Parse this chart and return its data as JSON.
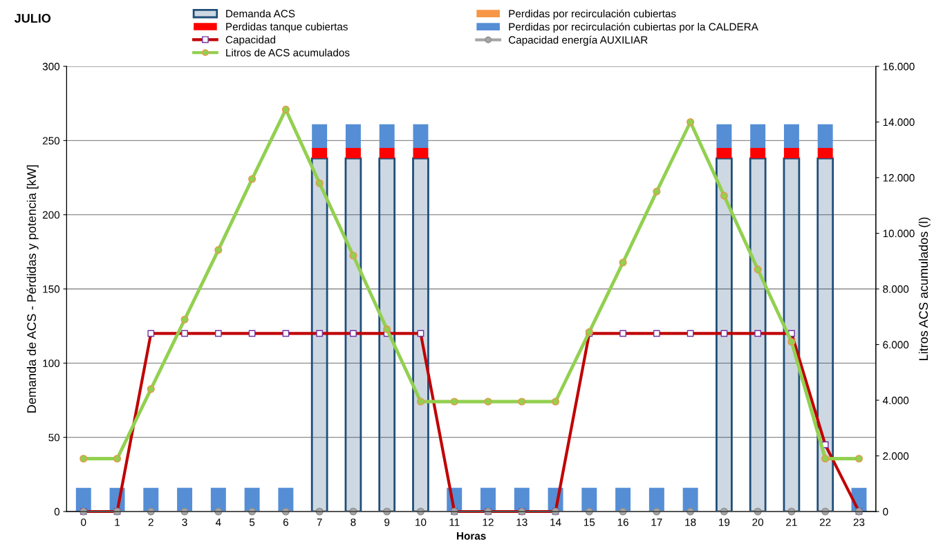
{
  "chart_data": {
    "type": "bar",
    "stacked": true,
    "title": "JULIO",
    "xlabel": "Horas",
    "ylabel": "Demanda de ACS - Pérdidas y potencia [kW]",
    "y2label": "Litros ACS acumulados (l)",
    "categories": [
      "0",
      "1",
      "2",
      "3",
      "4",
      "5",
      "6",
      "7",
      "8",
      "9",
      "10",
      "11",
      "12",
      "13",
      "14",
      "15",
      "16",
      "17",
      "18",
      "19",
      "20",
      "21",
      "22",
      "23"
    ],
    "series": [
      {
        "name": "Demanda ACS",
        "color": "#1f4e79",
        "values": [
          0,
          0,
          0,
          0,
          0,
          0,
          0,
          238,
          238,
          238,
          238,
          0,
          0,
          0,
          0,
          0,
          0,
          0,
          0,
          238,
          238,
          238,
          238,
          0
        ]
      },
      {
        "name": "Perdidas tanque cubiertas",
        "color": "#ff0000",
        "values": [
          0,
          0,
          0,
          0,
          0,
          0,
          0,
          7,
          7,
          7,
          7,
          0,
          0,
          0,
          0,
          0,
          0,
          0,
          0,
          7,
          7,
          7,
          7,
          0
        ]
      },
      {
        "name": "Capacidad",
        "type": "line",
        "color": "#c00000",
        "marker": "square",
        "values": [
          0,
          0,
          120,
          120,
          120,
          120,
          120,
          120,
          120,
          120,
          120,
          0,
          0,
          0,
          0,
          120,
          120,
          120,
          120,
          120,
          120,
          120,
          45,
          0
        ]
      },
      {
        "name": "Litros de ACS acumulados",
        "type": "line",
        "axis": "y2",
        "color": "#92d050",
        "marker": "circle",
        "values": [
          1900,
          1900,
          4400,
          6900,
          9400,
          11950,
          14450,
          11800,
          9200,
          6550,
          3950,
          3950,
          3950,
          3950,
          3950,
          6450,
          8950,
          11500,
          14000,
          11350,
          8700,
          6100,
          1900,
          1900
        ]
      },
      {
        "name": "Perdidas por recirculación cubiertas",
        "color": "#f79646",
        "values": [
          0,
          0,
          0,
          0,
          0,
          0,
          0,
          0,
          0,
          0,
          0,
          0,
          0,
          0,
          0,
          0,
          0,
          0,
          0,
          0,
          0,
          0,
          0,
          0
        ]
      },
      {
        "name": "Perdidas por recirculación cubiertas por la CALDERA",
        "color": "#558ed5",
        "values": [
          16,
          16,
          16,
          16,
          16,
          16,
          16,
          16,
          16,
          16,
          16,
          16,
          16,
          16,
          16,
          16,
          16,
          16,
          16,
          16,
          16,
          16,
          16,
          16
        ]
      },
      {
        "name": "Capacidad energía AUXILIAR",
        "type": "line",
        "color": "#a6a6a6",
        "marker": "circle",
        "values": [
          0,
          0,
          0,
          0,
          0,
          0,
          0,
          0,
          0,
          0,
          0,
          0,
          0,
          0,
          0,
          0,
          0,
          0,
          0,
          0,
          0,
          0,
          0,
          0
        ]
      }
    ],
    "ylim": [
      0,
      300
    ],
    "yticks": [
      0,
      50,
      100,
      150,
      200,
      250,
      300
    ],
    "y2lim": [
      0,
      16000
    ],
    "y2ticks": [
      0,
      {
        "value": 2000,
        "label": "2.000"
      },
      {
        "value": 4000,
        "label": "4.000"
      },
      {
        "value": 6000,
        "label": "6.000"
      },
      {
        "value": 8000,
        "label": "8.000"
      },
      {
        "value": 10000,
        "label": "10.000"
      },
      {
        "value": 12000,
        "label": "12.000"
      },
      {
        "value": 14000,
        "label": "14.000"
      },
      {
        "value": 16000,
        "label": "16.000"
      }
    ],
    "grid": "y",
    "legend": "top"
  }
}
